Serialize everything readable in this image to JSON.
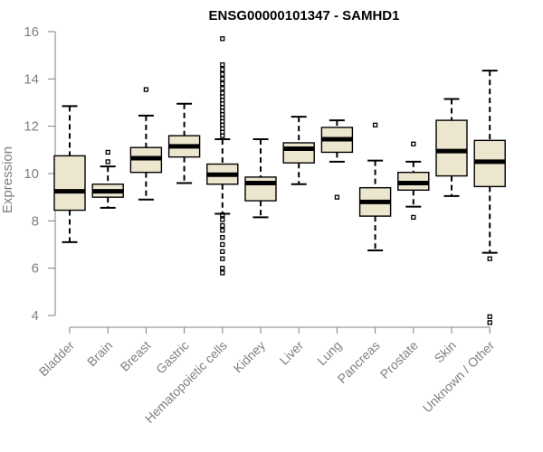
{
  "chart_data": {
    "type": "box",
    "title": "ENSG00000101347 - SAMHD1",
    "xlabel": "",
    "ylabel": "Expression",
    "ylim": [
      3.5,
      16
    ],
    "yticks": [
      4,
      6,
      8,
      10,
      12,
      14,
      16
    ],
    "grid": false,
    "colors": {
      "box_fill": "#ede6cf",
      "axis": "#808080"
    },
    "categories": [
      "Bladder",
      "Brain",
      "Breast",
      "Gastric",
      "Hematopoietic cells",
      "Kidney",
      "Liver",
      "Lung",
      "Pancreas",
      "Prostate",
      "Skin",
      "Unknown / Other"
    ],
    "boxes": [
      {
        "min": 7.1,
        "q1": 8.45,
        "median": 9.25,
        "q3": 10.75,
        "max": 12.85,
        "outliers": []
      },
      {
        "min": 8.55,
        "q1": 9.0,
        "median": 9.25,
        "q3": 9.55,
        "max": 10.3,
        "outliers": [
          10.5,
          10.9
        ]
      },
      {
        "min": 8.9,
        "q1": 10.05,
        "median": 10.65,
        "q3": 11.1,
        "max": 12.45,
        "outliers": [
          13.55
        ]
      },
      {
        "min": 9.6,
        "q1": 10.7,
        "median": 11.15,
        "q3": 11.6,
        "max": 12.95,
        "outliers": []
      },
      {
        "min": 8.3,
        "q1": 9.55,
        "median": 9.95,
        "q3": 10.4,
        "max": 11.45,
        "outliers": [
          15.7,
          14.6,
          14.4,
          14.2,
          14.0,
          13.8,
          13.6,
          13.4,
          13.25,
          13.1,
          12.95,
          12.8,
          12.65,
          12.5,
          12.35,
          12.2,
          12.05,
          11.9,
          11.75,
          11.6,
          8.25,
          8.05,
          7.8,
          7.6,
          7.3,
          7.0,
          6.7,
          6.4,
          6.0,
          5.8
        ]
      },
      {
        "min": 8.15,
        "q1": 8.85,
        "median": 9.6,
        "q3": 9.85,
        "max": 11.45,
        "outliers": []
      },
      {
        "min": 9.55,
        "q1": 10.45,
        "median": 11.05,
        "q3": 11.3,
        "max": 12.4,
        "outliers": []
      },
      {
        "min": 10.5,
        "q1": 10.9,
        "median": 11.45,
        "q3": 11.95,
        "max": 12.25,
        "outliers": [
          9.0
        ]
      },
      {
        "min": 6.75,
        "q1": 8.2,
        "median": 8.8,
        "q3": 9.4,
        "max": 10.55,
        "outliers": [
          12.05
        ]
      },
      {
        "min": 8.6,
        "q1": 9.3,
        "median": 9.6,
        "q3": 10.05,
        "max": 10.5,
        "outliers": [
          11.25,
          8.15
        ]
      },
      {
        "min": 9.05,
        "q1": 9.9,
        "median": 10.95,
        "q3": 12.25,
        "max": 13.15,
        "outliers": []
      },
      {
        "min": 6.65,
        "q1": 9.45,
        "median": 10.5,
        "q3": 11.4,
        "max": 14.35,
        "outliers": [
          6.4,
          3.95,
          3.7
        ]
      }
    ]
  }
}
